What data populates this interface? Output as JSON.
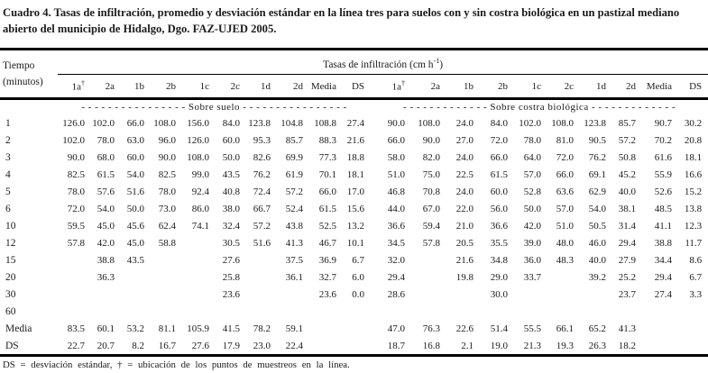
{
  "caption": "Cuadro 4. Tasas de infiltración, promedio y desviación estándar en la línea tres para suelos con y sin costra biológica en un pastizal mediano abierto del municipio de Hidalgo, Dgo. FAZ-UJED 2005.",
  "table": {
    "time_header_line1": "Tiempo",
    "time_header_line2": "(minutos)",
    "unit_header": {
      "prefix": "Tasas de infiltración (cm h",
      "sup": "-1",
      "suffix": ")"
    },
    "group_soil": "- - - - - - - - - - - - - - - -  Sobre suelo  - - - - - - - - - - - - - - - -",
    "group_crust": "- - - - - - - - - - - - -  Sobre costra biológica  - - - - - - - - - - - - -",
    "subcols": [
      {
        "label": "1a",
        "sup": "†"
      },
      {
        "label": "2a"
      },
      {
        "label": "1b"
      },
      {
        "label": "2b"
      },
      {
        "label": "1c"
      },
      {
        "label": "2c"
      },
      {
        "label": "1d"
      },
      {
        "label": "2d"
      },
      {
        "label": "Media"
      },
      {
        "label": "DS"
      },
      {
        "label": "1a",
        "sup": "†"
      },
      {
        "label": "2a"
      },
      {
        "label": "1b"
      },
      {
        "label": "2b"
      },
      {
        "label": "1c"
      },
      {
        "label": "2c"
      },
      {
        "label": "1d"
      },
      {
        "label": "2d"
      },
      {
        "label": "Media"
      },
      {
        "label": "DS"
      }
    ],
    "rows": [
      {
        "time": "1",
        "values": [
          "126.0",
          "102.0",
          "66.0",
          "108.0",
          "156.0",
          "84.0",
          "123.8",
          "104.8",
          "108.8",
          "27.4",
          "90.0",
          "108.0",
          "24.0",
          "84.0",
          "102.0",
          "108.0",
          "123.8",
          "85.7",
          "90.7",
          "30.2"
        ]
      },
      {
        "time": "2",
        "values": [
          "102.0",
          "78.0",
          "63.0",
          "96.0",
          "126.0",
          "60.0",
          "95.3",
          "85.7",
          "88.3",
          "21.6",
          "66.0",
          "90.0",
          "27.0",
          "72.0",
          "78.0",
          "81.0",
          "90.5",
          "57.2",
          "70.2",
          "20.8"
        ]
      },
      {
        "time": "3",
        "values": [
          "90.0",
          "68.0",
          "60.0",
          "90.0",
          "108.0",
          "50.0",
          "82.6",
          "69.9",
          "77.3",
          "18.8",
          "58.0",
          "82.0",
          "24.0",
          "66.0",
          "64.0",
          "72.0",
          "76.2",
          "50.8",
          "61.6",
          "18.1"
        ]
      },
      {
        "time": "4",
        "values": [
          "82.5",
          "61.5",
          "54.0",
          "82.5",
          "99.0",
          "43.5",
          "76.2",
          "61.9",
          "70.1",
          "18.1",
          "51.0",
          "75.0",
          "22.5",
          "61.5",
          "57.0",
          "66.0",
          "69.1",
          "45.2",
          "55.9",
          "16.6"
        ]
      },
      {
        "time": "5",
        "values": [
          "78.0",
          "57.6",
          "51.6",
          "78.0",
          "92.4",
          "40.8",
          "72.4",
          "57.2",
          "66.0",
          "17.0",
          "46.8",
          "70.8",
          "24.0",
          "60.0",
          "52.8",
          "63.6",
          "62.9",
          "40.0",
          "52.6",
          "15.2"
        ]
      },
      {
        "time": "6",
        "values": [
          "72.0",
          "54.0",
          "50.0",
          "73.0",
          "86.0",
          "38.0",
          "66.7",
          "52.4",
          "61.5",
          "15.6",
          "44.0",
          "67.0",
          "22.0",
          "56.0",
          "50.0",
          "57.0",
          "54.0",
          "38.1",
          "48.5",
          "13.8"
        ]
      },
      {
        "time": "10",
        "values": [
          "59.5",
          "45.0",
          "45.6",
          "62.4",
          "74.1",
          "32.4",
          "57.2",
          "43.8",
          "52.5",
          "13.2",
          "36.6",
          "59.4",
          "21.0",
          "36.6",
          "42.0",
          "51.0",
          "50.5",
          "31.4",
          "41.1",
          "12.3"
        ]
      },
      {
        "time": "12",
        "values": [
          "57.8",
          "42.0",
          "45.0",
          "58.8",
          "",
          "30.5",
          "51.6",
          "41.3",
          "46.7",
          "10.1",
          "34.5",
          "57.8",
          "20.5",
          "35.5",
          "39.0",
          "48.0",
          "46.0",
          "29.4",
          "38.8",
          "11.7"
        ]
      },
      {
        "time": "15",
        "values": [
          "",
          "38.8",
          "43.5",
          "",
          "",
          "27.6",
          "",
          "37.5",
          "36.9",
          "6.7",
          "32.0",
          "",
          "21.6",
          "34.8",
          "36.0",
          "48.3",
          "40.0",
          "27.9",
          "34.4",
          "8.6"
        ]
      },
      {
        "time": "20",
        "values": [
          "",
          "36.3",
          "",
          "",
          "",
          "25.8",
          "",
          "36.1",
          "32.7",
          "6.0",
          "29.4",
          "",
          "19.8",
          "29.0",
          "33.7",
          "",
          "39.2",
          "25.2",
          "29.4",
          "6.7"
        ]
      },
      {
        "time": "30",
        "values": [
          "",
          "",
          "",
          "",
          "",
          "23.6",
          "",
          "",
          "23.6",
          "0.0",
          "28.6",
          "",
          "",
          "30.0",
          "",
          "",
          "",
          "23.7",
          "27.4",
          "3.3"
        ]
      },
      {
        "time": "60",
        "values": [
          "",
          "",
          "",
          "",
          "",
          "",
          "",
          "",
          "",
          "",
          "",
          "",
          "",
          "",
          "",
          "",
          "",
          "",
          "",
          ""
        ]
      },
      {
        "time": "Media",
        "values": [
          "83.5",
          "60.1",
          "53.2",
          "81.1",
          "105.9",
          "41.5",
          "78.2",
          "59.1",
          "",
          "",
          "47.0",
          "76.3",
          "22.6",
          "51.4",
          "55.5",
          "66.1",
          "65.2",
          "41.3",
          "",
          ""
        ]
      },
      {
        "time": "DS",
        "values": [
          "22.7",
          "20.7",
          "8.2",
          "16.7",
          "27.6",
          "17.9",
          "23.0",
          "22.4",
          "",
          "",
          "18.7",
          "16.8",
          "2.1",
          "19.0",
          "21.3",
          "19.3",
          "26.3",
          "18.2",
          "",
          ""
        ]
      }
    ]
  },
  "footnote": "DS = desviación estándar, † = ubicación de los puntos de muestreos en la línea."
}
